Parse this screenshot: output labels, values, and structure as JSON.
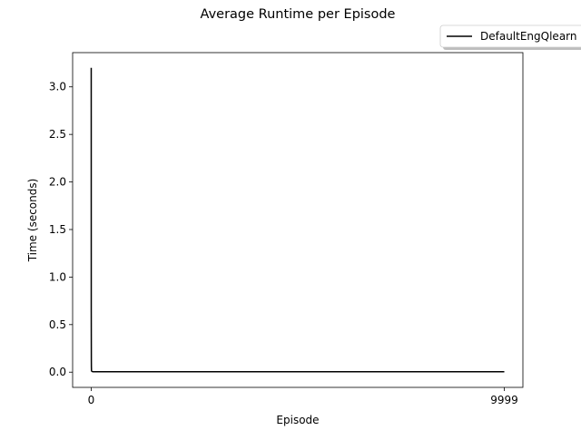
{
  "chart_data": {
    "type": "line",
    "title": "Average Runtime per Episode",
    "xlabel": "Episode",
    "ylabel": "Time (seconds)",
    "xlim": [
      -450,
      10449
    ],
    "ylim": [
      -0.16,
      3.36
    ],
    "xticks": [
      0,
      9999
    ],
    "xtick_labels": [
      "0",
      "9999"
    ],
    "yticks": [
      0.0,
      0.5,
      1.0,
      1.5,
      2.0,
      2.5,
      3.0
    ],
    "ytick_labels": [
      "0.0",
      "0.5",
      "1.0",
      "1.5",
      "2.0",
      "2.5",
      "3.0"
    ],
    "grid": false,
    "legend_position": "upper-right (outside axes)",
    "series": [
      {
        "name": "DefaultEngQlearn",
        "color": "#000000",
        "x": [
          0,
          1,
          2,
          3,
          4,
          5,
          6,
          8,
          10,
          15,
          20,
          30,
          40,
          60,
          80,
          100,
          150,
          200,
          300,
          400,
          500,
          600,
          700,
          800,
          900,
          1000,
          1500,
          2000,
          2500,
          3000,
          3500,
          4000,
          4500,
          5000,
          5500,
          6000,
          6500,
          7000,
          7500,
          8000,
          8500,
          9000,
          9500,
          9999
        ],
        "y": [
          3.2,
          0.63,
          0.35,
          0.12,
          0.06,
          0.04,
          0.02,
          0.015,
          0.012,
          0.01,
          0.008,
          0.006,
          0.005,
          0.005,
          0.004,
          0.004,
          0.004,
          0.004,
          0.004,
          0.004,
          0.004,
          0.004,
          0.004,
          0.004,
          0.004,
          0.004,
          0.004,
          0.004,
          0.004,
          0.004,
          0.004,
          0.004,
          0.004,
          0.004,
          0.004,
          0.004,
          0.004,
          0.004,
          0.004,
          0.004,
          0.004,
          0.004,
          0.004,
          0.004
        ]
      }
    ]
  }
}
